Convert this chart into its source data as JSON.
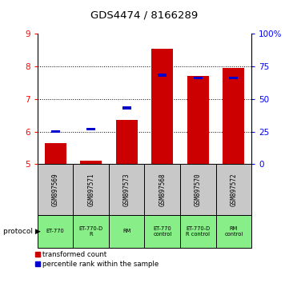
{
  "title": "GDS4474 / 8166289",
  "samples": [
    "GSM897569",
    "GSM897571",
    "GSM897573",
    "GSM897568",
    "GSM897570",
    "GSM897572"
  ],
  "protocols": [
    "ET-770",
    "ET-770-D\nR",
    "RM",
    "ET-770\ncontrol",
    "ET-770-D\nR control",
    "RM\ncontrol"
  ],
  "red_values": [
    5.65,
    5.1,
    6.35,
    8.55,
    7.7,
    7.95
  ],
  "blue_values_y": [
    6.0,
    6.08,
    6.73,
    7.73,
    7.65,
    7.65
  ],
  "ylim_left": [
    5,
    9
  ],
  "ylim_right": [
    0,
    100
  ],
  "yticks_left": [
    5,
    6,
    7,
    8,
    9
  ],
  "yticks_right": [
    0,
    25,
    50,
    75,
    100
  ],
  "yticklabels_right": [
    "0",
    "25",
    "50",
    "75",
    "100%"
  ],
  "red_color": "#cc0000",
  "blue_color": "#0000cc",
  "bar_bottom": 5,
  "sample_bg": "#c8c8c8",
  "proto_bg": "#88ee88",
  "legend_red": "transformed count",
  "legend_blue": "percentile rank within the sample",
  "title_fontsize": 9.5
}
